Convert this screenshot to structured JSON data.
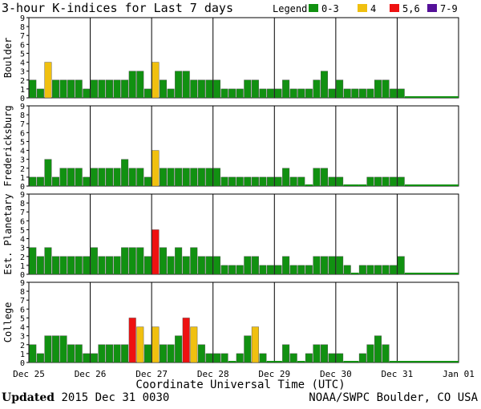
{
  "title": "3-hour K-indices for Last 7 days",
  "legend": {
    "label": "Legend:",
    "items": [
      {
        "label": "0-3",
        "color": "#119111"
      },
      {
        "label": "4",
        "color": "#f0c010"
      },
      {
        "label": "5,6",
        "color": "#ee1111"
      },
      {
        "label": "7-9",
        "color": "#551199"
      }
    ]
  },
  "footer": {
    "updated_label": "Updated",
    "updated_value": " 2015 Dec 31 0030",
    "credit": "NOAA/SWPC Boulder, CO USA"
  },
  "chart_data": {
    "type": "bar",
    "xlabel": "Coordinate Universal Time (UTC)",
    "x_tick_labels": [
      "Dec 25",
      "Dec 26",
      "Dec 27",
      "Dec 28",
      "Dec 29",
      "Dec 30",
      "Dec 31",
      "Jan 01"
    ],
    "ylim": [
      0,
      9
    ],
    "y_ticks": [
      0,
      1,
      2,
      3,
      4,
      5,
      6,
      7,
      8,
      9
    ],
    "bins_per_day": 8,
    "total_bins": 56,
    "panels": [
      {
        "name": "Boulder",
        "values": [
          2,
          1,
          4,
          2,
          2,
          2,
          2,
          1,
          2,
          2,
          2,
          2,
          2,
          3,
          3,
          1,
          4,
          2,
          1,
          3,
          3,
          2,
          2,
          2,
          2,
          1,
          1,
          1,
          2,
          2,
          1,
          1,
          1,
          2,
          1,
          1,
          1,
          2,
          3,
          1,
          2,
          1,
          1,
          1,
          1,
          2,
          2,
          1,
          1
        ]
      },
      {
        "name": "Fredericksburg",
        "values": [
          1,
          1,
          3,
          1,
          2,
          2,
          2,
          1,
          2,
          2,
          2,
          2,
          3,
          2,
          2,
          1,
          4,
          2,
          2,
          2,
          2,
          2,
          2,
          2,
          2,
          1,
          1,
          1,
          1,
          1,
          1,
          1,
          1,
          2,
          1,
          1,
          0,
          2,
          2,
          1,
          1,
          0,
          0,
          0,
          1,
          1,
          1,
          1,
          1
        ]
      },
      {
        "name": "Est. Planetary",
        "values": [
          3,
          2,
          3,
          2,
          2,
          2,
          2,
          2,
          3,
          2,
          2,
          2,
          3,
          3,
          3,
          2,
          5,
          3,
          2,
          3,
          2,
          3,
          2,
          2,
          2,
          1,
          1,
          1,
          2,
          2,
          1,
          1,
          1,
          2,
          1,
          1,
          1,
          2,
          2,
          2,
          2,
          1,
          0,
          1,
          1,
          1,
          1,
          1,
          2
        ]
      },
      {
        "name": "College",
        "values": [
          2,
          1,
          3,
          3,
          3,
          2,
          2,
          1,
          1,
          2,
          2,
          2,
          2,
          5,
          4,
          2,
          4,
          2,
          2,
          3,
          5,
          4,
          2,
          1,
          1,
          1,
          0,
          1,
          3,
          4,
          1,
          0,
          0,
          2,
          1,
          0,
          1,
          2,
          2,
          1,
          1,
          0,
          0,
          1,
          2,
          3,
          2,
          0,
          0
        ]
      }
    ]
  }
}
